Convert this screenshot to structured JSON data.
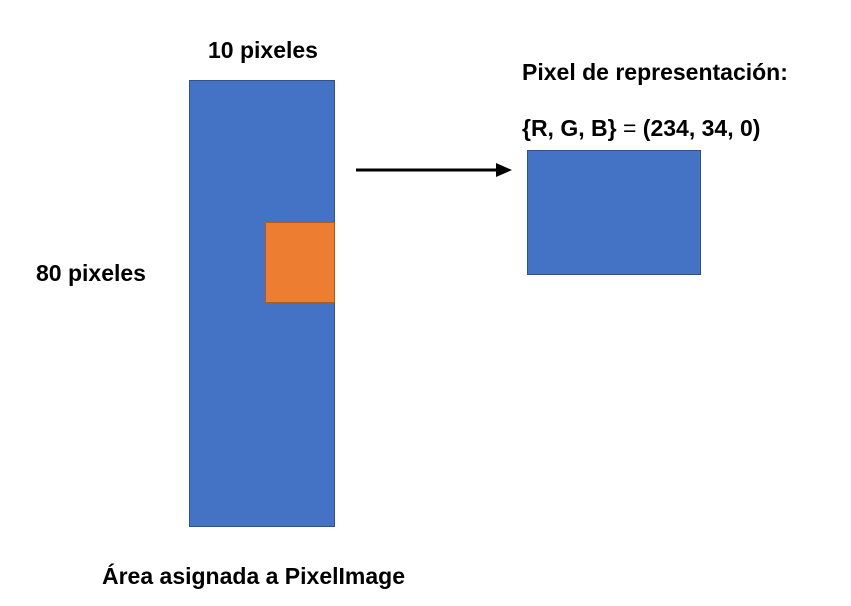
{
  "diagram": {
    "width_label": "10 pixeles",
    "height_label": "80 pixeles",
    "area_caption": "Área asignada a PixelImage",
    "representation_title": "Pixel de representación:",
    "rgb_lhs": "{R, G, B}",
    "rgb_eq": " = ",
    "rgb_rhs": "(234, 34, 0)"
  },
  "colors": {
    "area_fill": "#4472c4",
    "sample_fill": "#ed7d31",
    "representation_fill": "#4472c4",
    "arrow": "#000000"
  }
}
